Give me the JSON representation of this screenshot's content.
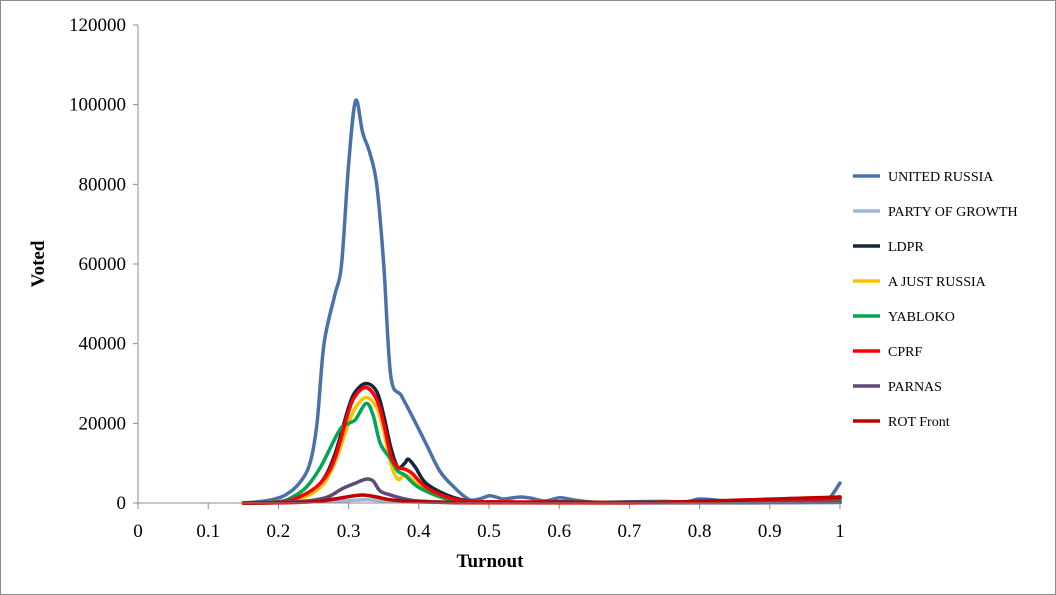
{
  "chart_data": {
    "type": "line",
    "title": "",
    "xlabel": "Turnout",
    "ylabel": "Voted",
    "xlim": [
      0,
      1
    ],
    "ylim": [
      0,
      120000
    ],
    "xticks": [
      0,
      0.1,
      0.2,
      0.3,
      0.4,
      0.5,
      0.6,
      0.7,
      0.8,
      0.9,
      1
    ],
    "xtick_labels": [
      "0",
      "0.1",
      "0.2",
      "0.3",
      "0.4",
      "0.5",
      "0.6",
      "0.7",
      "0.8",
      "0.9",
      "1"
    ],
    "yticks": [
      0,
      20000,
      40000,
      60000,
      80000,
      100000,
      120000
    ],
    "ytick_labels": [
      "0",
      "20000",
      "40000",
      "60000",
      "80000",
      "100000",
      "120000"
    ],
    "grid": false,
    "legend_position": "right",
    "series": [
      {
        "name": "UNITED RUSSIA",
        "color": "#4a72a8",
        "points": [
          [
            0.15,
            0
          ],
          [
            0.17,
            300
          ],
          [
            0.19,
            800
          ],
          [
            0.21,
            2000
          ],
          [
            0.23,
            5000
          ],
          [
            0.245,
            10000
          ],
          [
            0.255,
            20000
          ],
          [
            0.265,
            40000
          ],
          [
            0.28,
            52000
          ],
          [
            0.29,
            60000
          ],
          [
            0.3,
            85000
          ],
          [
            0.31,
            101000
          ],
          [
            0.32,
            93000
          ],
          [
            0.33,
            88000
          ],
          [
            0.34,
            80000
          ],
          [
            0.35,
            60000
          ],
          [
            0.36,
            32000
          ],
          [
            0.375,
            27000
          ],
          [
            0.39,
            22000
          ],
          [
            0.41,
            15000
          ],
          [
            0.43,
            8000
          ],
          [
            0.45,
            4000
          ],
          [
            0.47,
            1000
          ],
          [
            0.48,
            800
          ],
          [
            0.49,
            1200
          ],
          [
            0.5,
            1800
          ],
          [
            0.51,
            1500
          ],
          [
            0.52,
            1000
          ],
          [
            0.53,
            1200
          ],
          [
            0.545,
            1500
          ],
          [
            0.56,
            1200
          ],
          [
            0.58,
            500
          ],
          [
            0.6,
            1300
          ],
          [
            0.62,
            800
          ],
          [
            0.65,
            200
          ],
          [
            0.7,
            300
          ],
          [
            0.75,
            400
          ],
          [
            0.78,
            300
          ],
          [
            0.8,
            1000
          ],
          [
            0.82,
            800
          ],
          [
            0.85,
            300
          ],
          [
            0.9,
            500
          ],
          [
            0.93,
            1000
          ],
          [
            0.96,
            800
          ],
          [
            0.98,
            300
          ],
          [
            1.0,
            5000
          ]
        ]
      },
      {
        "name": "PARTY OF GROWTH",
        "color": "#9bb7d9",
        "points": [
          [
            0.15,
            0
          ],
          [
            0.2,
            100
          ],
          [
            0.25,
            300
          ],
          [
            0.3,
            600
          ],
          [
            0.325,
            800
          ],
          [
            0.35,
            500
          ],
          [
            0.4,
            200
          ],
          [
            0.5,
            80
          ],
          [
            0.6,
            50
          ],
          [
            0.8,
            30
          ],
          [
            1.0,
            60
          ]
        ]
      },
      {
        "name": "LDPR",
        "color": "#14253f",
        "points": [
          [
            0.15,
            0
          ],
          [
            0.18,
            100
          ],
          [
            0.2,
            300
          ],
          [
            0.23,
            1500
          ],
          [
            0.26,
            5000
          ],
          [
            0.28,
            12000
          ],
          [
            0.3,
            24000
          ],
          [
            0.31,
            28000
          ],
          [
            0.325,
            30000
          ],
          [
            0.34,
            28000
          ],
          [
            0.35,
            22000
          ],
          [
            0.36,
            14000
          ],
          [
            0.37,
            9000
          ],
          [
            0.38,
            10000
          ],
          [
            0.385,
            11000
          ],
          [
            0.395,
            9000
          ],
          [
            0.41,
            5000
          ],
          [
            0.44,
            2000
          ],
          [
            0.47,
            500
          ],
          [
            0.5,
            300
          ],
          [
            0.55,
            200
          ],
          [
            0.6,
            300
          ],
          [
            0.7,
            150
          ],
          [
            0.8,
            200
          ],
          [
            0.9,
            200
          ],
          [
            1.0,
            1500
          ]
        ]
      },
      {
        "name": "A JUST RUSSIA",
        "color": "#ffc000",
        "points": [
          [
            0.15,
            0
          ],
          [
            0.2,
            200
          ],
          [
            0.23,
            1000
          ],
          [
            0.26,
            4000
          ],
          [
            0.28,
            10000
          ],
          [
            0.3,
            20000
          ],
          [
            0.31,
            24000
          ],
          [
            0.325,
            26500
          ],
          [
            0.34,
            24000
          ],
          [
            0.35,
            18000
          ],
          [
            0.36,
            10000
          ],
          [
            0.37,
            6000
          ],
          [
            0.38,
            7000
          ],
          [
            0.39,
            6000
          ],
          [
            0.41,
            3000
          ],
          [
            0.44,
            1000
          ],
          [
            0.47,
            300
          ],
          [
            0.5,
            200
          ],
          [
            0.6,
            150
          ],
          [
            0.8,
            100
          ],
          [
            1.0,
            1000
          ]
        ]
      },
      {
        "name": "YABLOKO",
        "color": "#00a650",
        "points": [
          [
            0.15,
            0
          ],
          [
            0.2,
            300
          ],
          [
            0.22,
            1500
          ],
          [
            0.24,
            4000
          ],
          [
            0.26,
            9000
          ],
          [
            0.28,
            16000
          ],
          [
            0.29,
            19000
          ],
          [
            0.3,
            20000
          ],
          [
            0.31,
            21000
          ],
          [
            0.325,
            25000
          ],
          [
            0.335,
            22000
          ],
          [
            0.345,
            15000
          ],
          [
            0.36,
            11000
          ],
          [
            0.37,
            8000
          ],
          [
            0.38,
            7000
          ],
          [
            0.395,
            4500
          ],
          [
            0.41,
            3000
          ],
          [
            0.44,
            1000
          ],
          [
            0.47,
            300
          ],
          [
            0.5,
            200
          ],
          [
            0.6,
            100
          ],
          [
            0.8,
            100
          ],
          [
            1.0,
            800
          ]
        ]
      },
      {
        "name": "CPRF",
        "color": "#ff0000",
        "points": [
          [
            0.15,
            0
          ],
          [
            0.2,
            200
          ],
          [
            0.23,
            1500
          ],
          [
            0.26,
            5000
          ],
          [
            0.28,
            11000
          ],
          [
            0.3,
            23000
          ],
          [
            0.31,
            27000
          ],
          [
            0.325,
            29000
          ],
          [
            0.34,
            26000
          ],
          [
            0.35,
            20000
          ],
          [
            0.36,
            12000
          ],
          [
            0.37,
            9000
          ],
          [
            0.38,
            8500
          ],
          [
            0.39,
            7500
          ],
          [
            0.41,
            4000
          ],
          [
            0.44,
            1500
          ],
          [
            0.47,
            400
          ],
          [
            0.5,
            300
          ],
          [
            0.6,
            200
          ],
          [
            0.8,
            150
          ],
          [
            1.0,
            1200
          ]
        ]
      },
      {
        "name": "PARNAS",
        "color": "#604a7b",
        "points": [
          [
            0.15,
            0
          ],
          [
            0.2,
            100
          ],
          [
            0.24,
            500
          ],
          [
            0.27,
            1500
          ],
          [
            0.29,
            3500
          ],
          [
            0.31,
            5000
          ],
          [
            0.325,
            6000
          ],
          [
            0.335,
            5500
          ],
          [
            0.345,
            3000
          ],
          [
            0.36,
            2000
          ],
          [
            0.38,
            1000
          ],
          [
            0.4,
            500
          ],
          [
            0.45,
            150
          ],
          [
            0.5,
            80
          ],
          [
            0.7,
            50
          ],
          [
            1.0,
            200
          ]
        ]
      },
      {
        "name": "ROT Front",
        "color": "#c00000",
        "points": [
          [
            0.15,
            0
          ],
          [
            0.2,
            50
          ],
          [
            0.25,
            300
          ],
          [
            0.28,
            1000
          ],
          [
            0.3,
            1600
          ],
          [
            0.32,
            2000
          ],
          [
            0.34,
            1500
          ],
          [
            0.36,
            800
          ],
          [
            0.4,
            300
          ],
          [
            0.45,
            100
          ],
          [
            0.5,
            50
          ],
          [
            0.7,
            30
          ],
          [
            1.0,
            1500
          ]
        ]
      }
    ]
  }
}
